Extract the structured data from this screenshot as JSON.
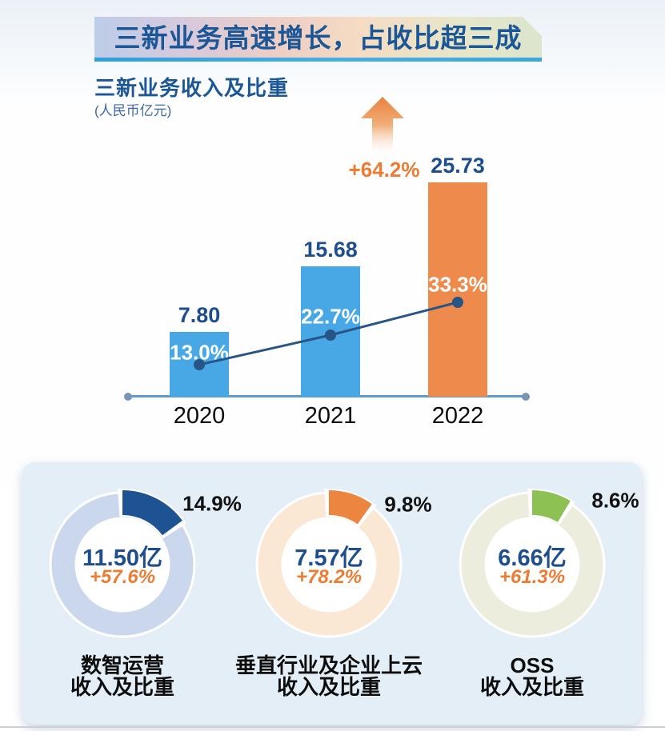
{
  "header": {
    "title": "三新业务高速增长，占收比超三成",
    "title_color": "#1B5697",
    "underline_color": "#2E9FDA",
    "banner_gradient": [
      "#BDCDE9",
      "#EECFC4",
      "#F5DCC3",
      "#DCE5CE"
    ]
  },
  "bar_section": {
    "title": "三新业务收入及比重",
    "unit": "(人民币亿元)",
    "growth_badge": "+64.2%",
    "growth_color": "#ED7C33"
  },
  "donut_section": {
    "panel_color": "#E3EEF7"
  },
  "chart_data": [
    {
      "type": "bar",
      "title": "三新业务收入及比重",
      "unit": "人民币亿元",
      "categories": [
        "2020",
        "2021",
        "2022"
      ],
      "series": [
        {
          "name": "三新业务收入",
          "type": "bar",
          "values": [
            7.8,
            15.68,
            25.73
          ],
          "labels": [
            "7.80",
            "15.68",
            "25.73"
          ],
          "bar_colors": [
            "#48A8E6",
            "#48A8E6",
            "#EE8A4C"
          ],
          "label_color": "#1F4E8F"
        },
        {
          "name": "占收比",
          "type": "line",
          "values": [
            13.0,
            22.7,
            33.3
          ],
          "labels": [
            "13.0%",
            "22.7%",
            "33.3%"
          ],
          "line_color": "#265586",
          "label_color": "#FFFFFF"
        }
      ],
      "annotation": {
        "text": "+64.2%",
        "color": "#ED7C33",
        "icon": "up-arrow"
      },
      "ylim": [
        0,
        26
      ],
      "grid": false,
      "legend": false,
      "axis_color": "#5E9BD3"
    },
    {
      "type": "pie",
      "subtype": "donut",
      "items": [
        {
          "label_lines": [
            "数智运营",
            "收入及比重"
          ],
          "share_pct": 14.9,
          "share_label": "14.9%",
          "value_label": "11.50亿",
          "growth_label": "+57.6%",
          "segment_color": "#1D5392",
          "ring_color": "#CBD7ED"
        },
        {
          "label_lines": [
            "垂直行业及企业上云",
            "收入及比重"
          ],
          "share_pct": 9.8,
          "share_label": "9.8%",
          "value_label": "7.57亿",
          "growth_label": "+78.2%",
          "segment_color": "#EC8540",
          "ring_color": "#FAE7D4"
        },
        {
          "label_lines": [
            "OSS",
            "收入及比重"
          ],
          "share_pct": 8.6,
          "share_label": "8.6%",
          "value_label": "6.66亿",
          "growth_label": "+61.3%",
          "segment_color": "#8DC153",
          "ring_color": "#ECEDDD"
        }
      ],
      "value_color": "#1F4E8F",
      "growth_color": "#ED7C33",
      "share_label_color": "#111111"
    }
  ]
}
